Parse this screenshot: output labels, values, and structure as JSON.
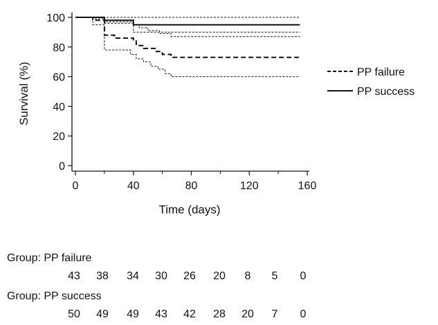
{
  "chart_data": {
    "type": "line",
    "subtype": "kaplan-meier",
    "xlabel": "Time (days)",
    "ylabel": "Survival (%)",
    "xlim": [
      0,
      160
    ],
    "ylim": [
      0,
      100
    ],
    "x_ticks": [
      0,
      40,
      80,
      120,
      160
    ],
    "y_ticks": [
      0,
      20,
      40,
      60,
      80,
      100
    ],
    "grid": false,
    "legend_position": "right",
    "series": [
      {
        "name": "PP failure",
        "line_style": "dashed",
        "color": "#111111",
        "estimate": [
          [
            0,
            100
          ],
          [
            12,
            100
          ],
          [
            12,
            98
          ],
          [
            20,
            98
          ],
          [
            20,
            88
          ],
          [
            27,
            88
          ],
          [
            27,
            86
          ],
          [
            40,
            86
          ],
          [
            40,
            84
          ],
          [
            42,
            84
          ],
          [
            42,
            81
          ],
          [
            47,
            81
          ],
          [
            47,
            79
          ],
          [
            55,
            79
          ],
          [
            55,
            77
          ],
          [
            60,
            77
          ],
          [
            60,
            75
          ],
          [
            66,
            75
          ],
          [
            66,
            73
          ],
          [
            155,
            73
          ]
        ],
        "ci_upper": [
          [
            0,
            100
          ],
          [
            12,
            100
          ],
          [
            12,
            99
          ],
          [
            20,
            99
          ],
          [
            20,
            97
          ],
          [
            40,
            97
          ],
          [
            40,
            95
          ],
          [
            44,
            95
          ],
          [
            44,
            93
          ],
          [
            50,
            93
          ],
          [
            50,
            91
          ],
          [
            58,
            91
          ],
          [
            58,
            89
          ],
          [
            66,
            89
          ],
          [
            66,
            87
          ],
          [
            155,
            87
          ]
        ],
        "ci_lower": [
          [
            0,
            100
          ],
          [
            12,
            100
          ],
          [
            12,
            95
          ],
          [
            20,
            95
          ],
          [
            20,
            78
          ],
          [
            38,
            78
          ],
          [
            38,
            75
          ],
          [
            42,
            75
          ],
          [
            42,
            72
          ],
          [
            47,
            72
          ],
          [
            47,
            70
          ],
          [
            52,
            70
          ],
          [
            52,
            67
          ],
          [
            57,
            67
          ],
          [
            57,
            65
          ],
          [
            62,
            65
          ],
          [
            62,
            62
          ],
          [
            66,
            62
          ],
          [
            66,
            60
          ],
          [
            155,
            60
          ]
        ]
      },
      {
        "name": "PP success",
        "line_style": "solid",
        "color": "#111111",
        "estimate": [
          [
            0,
            100
          ],
          [
            20,
            100
          ],
          [
            20,
            98
          ],
          [
            40,
            98
          ],
          [
            40,
            95
          ],
          [
            155,
            95
          ]
        ],
        "ci_upper": [
          [
            0,
            100
          ],
          [
            155,
            100
          ]
        ],
        "ci_lower": [
          [
            0,
            100
          ],
          [
            20,
            100
          ],
          [
            20,
            96
          ],
          [
            40,
            96
          ],
          [
            40,
            90
          ],
          [
            155,
            90
          ]
        ]
      }
    ]
  },
  "risk_table": {
    "groups": [
      {
        "label": "Group: PP failure",
        "counts": [
          "43",
          "38",
          "34",
          "30",
          "26",
          "20",
          "8",
          "5",
          "0"
        ]
      },
      {
        "label": "Group: PP success",
        "counts": [
          "50",
          "49",
          "49",
          "43",
          "42",
          "28",
          "20",
          "7",
          "0"
        ]
      }
    ]
  }
}
